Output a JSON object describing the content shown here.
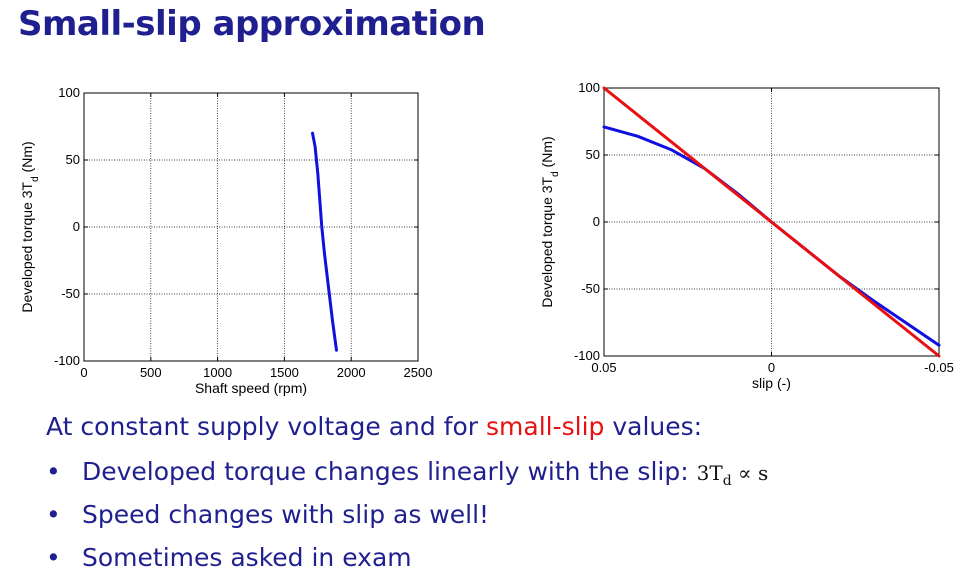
{
  "slide": {
    "title": "Small-slip approximation",
    "intro_before": "At constant supply voltage and for ",
    "intro_highlight": "small-slip",
    "intro_after": " values:",
    "bullets": [
      {
        "text": "Developed torque changes linearly with the slip:",
        "math": "3T",
        "math_sub": "d",
        "math_rest": " ∝ s"
      },
      {
        "text": "Speed changes with slip as well!"
      },
      {
        "text": "Sometimes asked in exam"
      }
    ],
    "colors": {
      "title": "#1f1f8f",
      "highlight": "#e81010",
      "curve": "#1010e0",
      "line": "#e81010"
    }
  },
  "chart_data": [
    {
      "type": "line",
      "xlabel": "Shaft speed (rpm)",
      "ylabel": "Developed torque 3T_d (Nm)",
      "ylabel_main": "Developed torque 3T",
      "ylabel_sub": "d",
      "ylabel_tail": " (Nm)",
      "xlim": [
        0,
        2500
      ],
      "ylim": [
        -100,
        100
      ],
      "xticks": [
        "0",
        "500",
        "1000",
        "1500",
        "2000",
        "2500"
      ],
      "xtick_values": [
        0,
        500,
        1000,
        1500,
        2000,
        2500
      ],
      "yticks": [
        "100",
        "50",
        "0",
        "-50",
        "-100"
      ],
      "ytick_values": [
        100,
        50,
        0,
        -50,
        -100
      ],
      "grid": true,
      "series": [
        {
          "color": "#1010e0",
          "x": [
            1710,
            1730,
            1750,
            1765,
            1780,
            1800,
            1830,
            1860,
            1890
          ],
          "y": [
            70,
            60,
            40,
            20,
            0,
            -20,
            -45,
            -70,
            -92
          ]
        }
      ]
    },
    {
      "type": "line",
      "xlabel": "slip (-)",
      "ylabel": "Developed torque 3T_d (Nm)",
      "ylabel_main": "Developed torque 3T",
      "ylabel_sub": "d",
      "ylabel_tail": " (Nm)",
      "xlim": [
        0.05,
        -0.05
      ],
      "ylim": [
        -100,
        100
      ],
      "xticks": [
        "0.05",
        "0",
        "-0.05"
      ],
      "xtick_values": [
        0.05,
        0,
        -0.05
      ],
      "yticks": [
        "100",
        "50",
        "0",
        "-50",
        "-100"
      ],
      "ytick_values": [
        100,
        50,
        0,
        -50,
        -100
      ],
      "grid": true,
      "series": [
        {
          "color": "#1010e0",
          "x": [
            0.05,
            0.04,
            0.03,
            0.02,
            0.01,
            0,
            -0.01,
            -0.02,
            -0.03,
            -0.04,
            -0.05
          ],
          "y": [
            71,
            64,
            54,
            40,
            21,
            0,
            -20,
            -40,
            -58,
            -75,
            -92
          ]
        },
        {
          "color": "#e81010",
          "x": [
            0.05,
            -0.05
          ],
          "y": [
            100,
            -100
          ]
        }
      ]
    }
  ]
}
